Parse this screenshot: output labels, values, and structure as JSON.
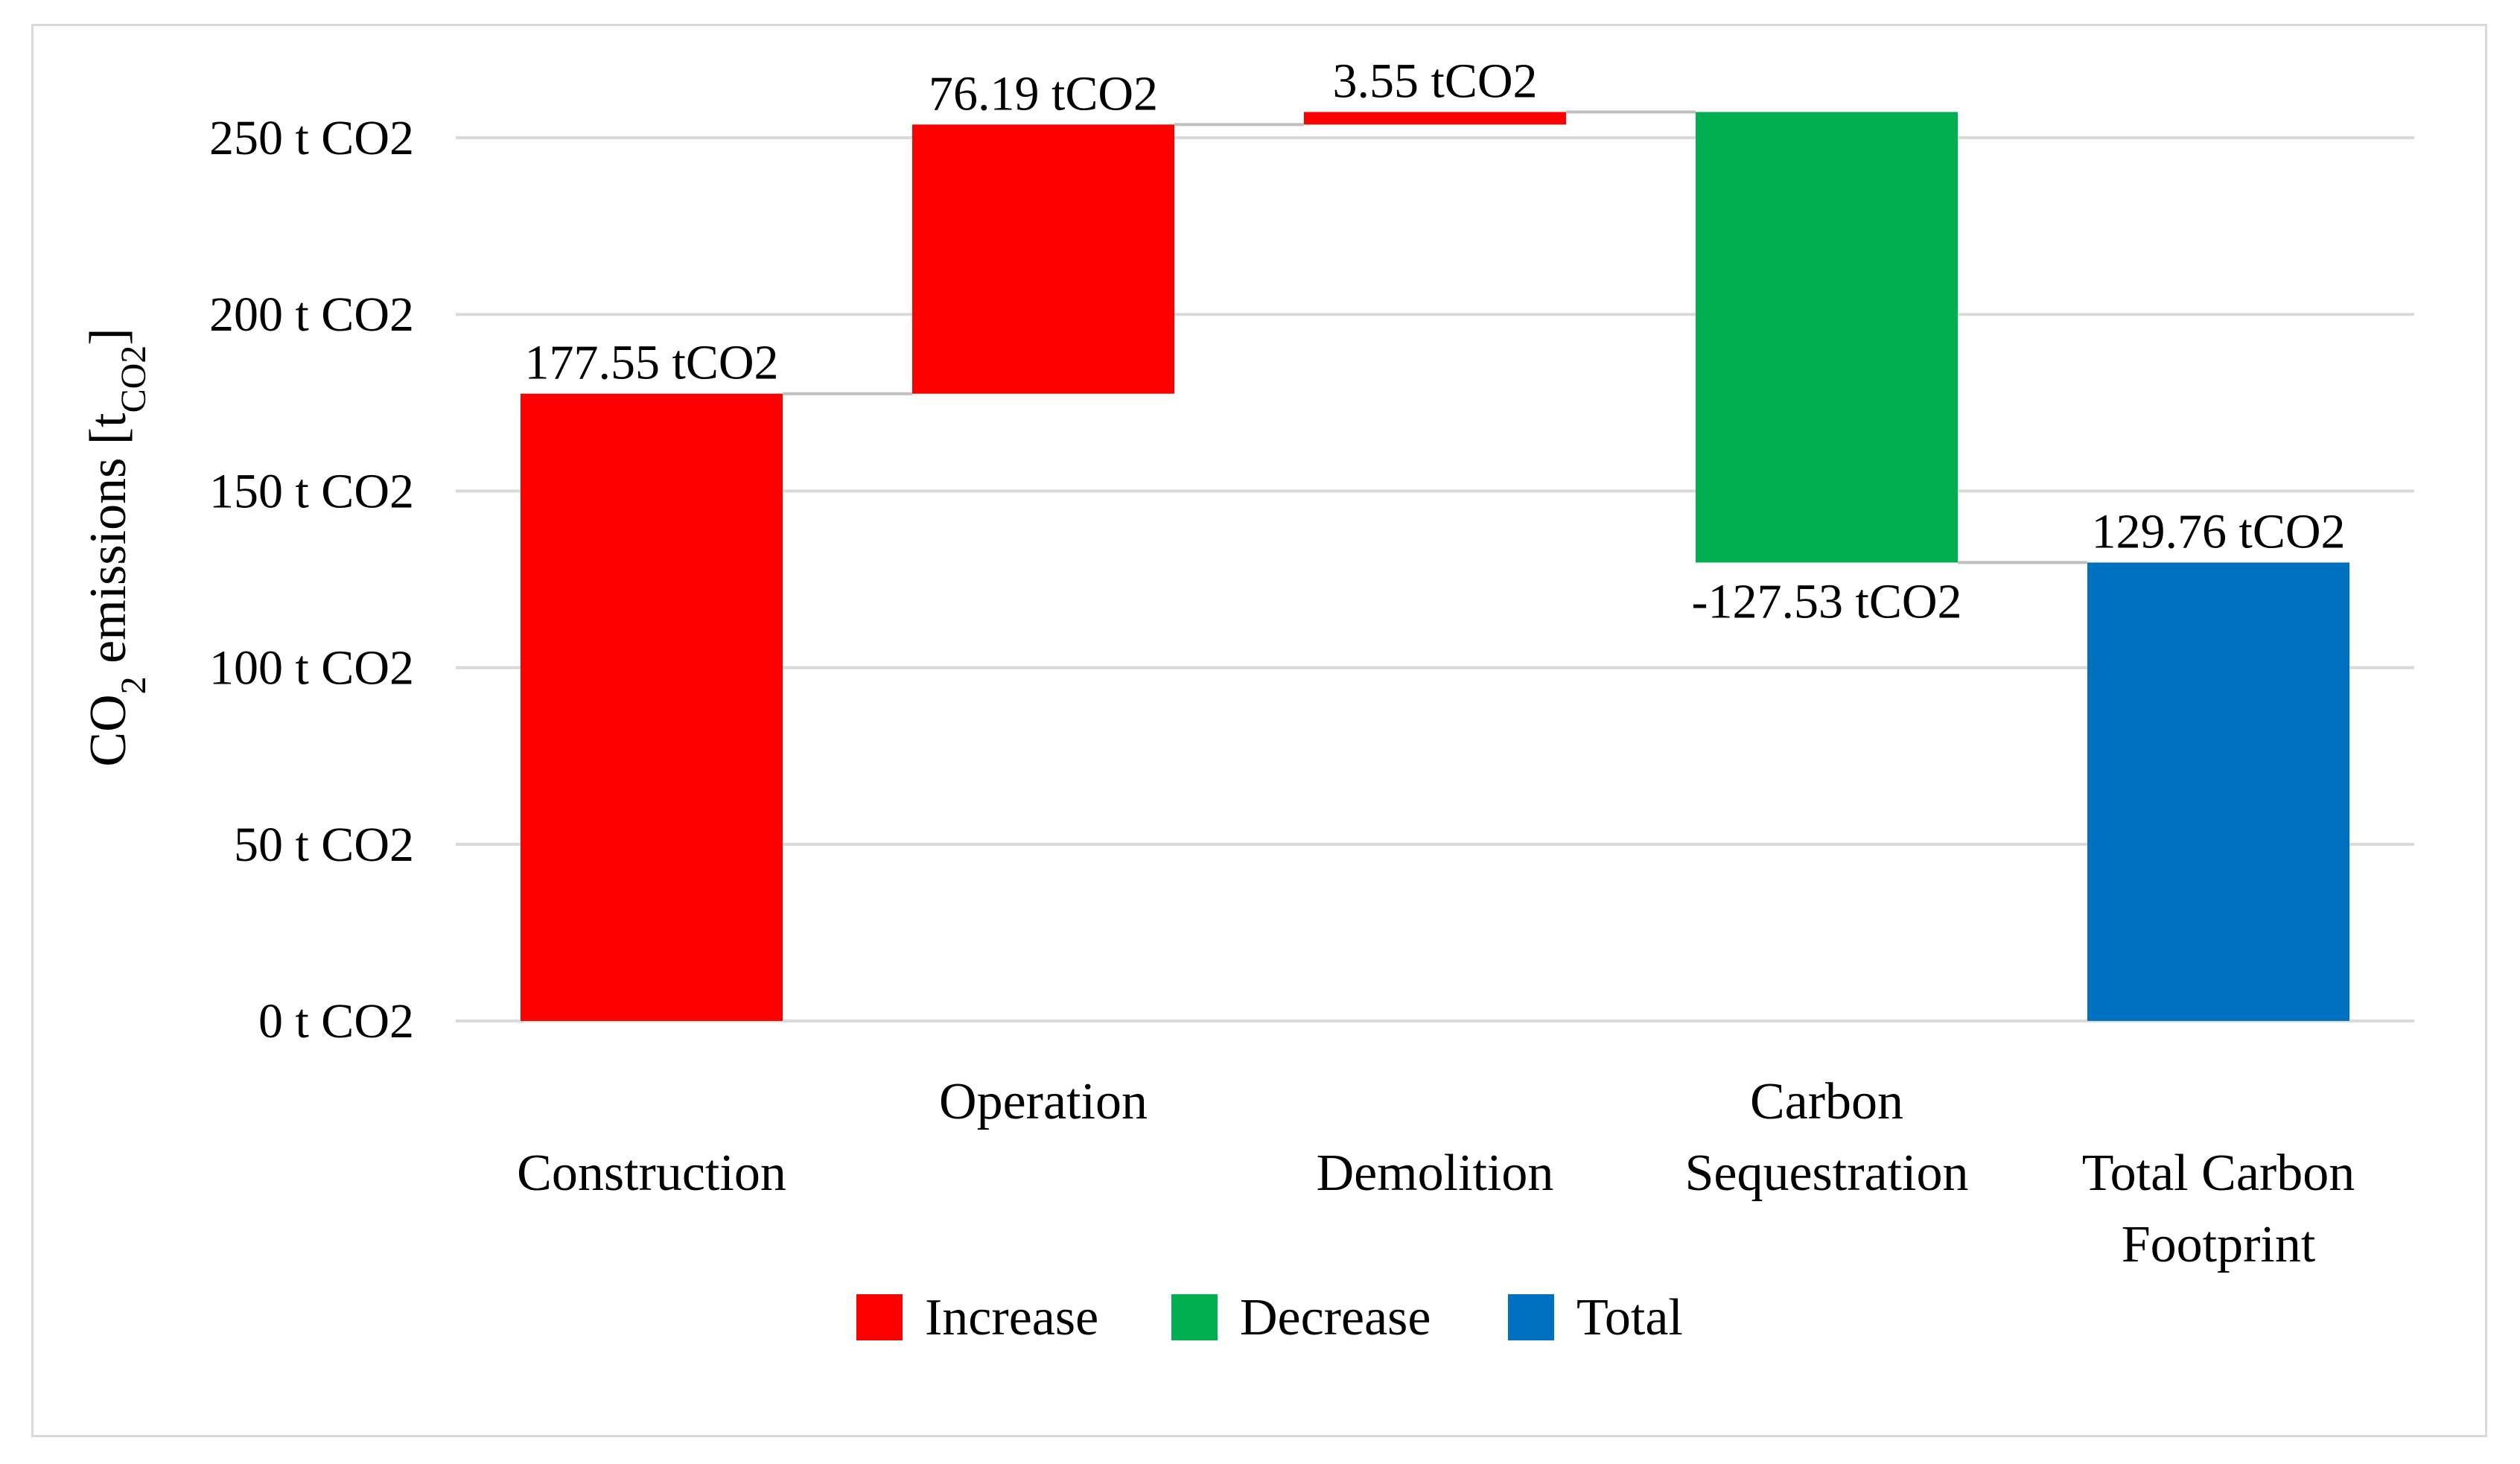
{
  "chart_data": {
    "type": "waterfall",
    "title": "",
    "xlabel": "",
    "ylabel": {
      "base": "CO",
      "sub": "2",
      "text": " emissions [t",
      "unit_sub": "CO2",
      "end": "]"
    },
    "ylim": [
      0,
      250
    ],
    "yticks": [
      0,
      50,
      100,
      150,
      200,
      250
    ],
    "ytick_labels": [
      "0 t CO2",
      "50 t CO2",
      "100 t CO2",
      "150 t CO2",
      "200 t CO2",
      "250 t CO2"
    ],
    "grid": true,
    "legend_position": "bottom",
    "categories": [
      {
        "lines": [
          "Construction"
        ],
        "value": 177.55,
        "kind": "increase",
        "label": "177.55 tCO2"
      },
      {
        "lines": [
          "Operation"
        ],
        "value": 76.19,
        "kind": "increase",
        "label": "76.19 tCO2"
      },
      {
        "lines": [
          "Demolition"
        ],
        "value": 3.55,
        "kind": "increase",
        "label": "3.55 tCO2"
      },
      {
        "lines": [
          "Carbon",
          "Sequestration"
        ],
        "value": -127.53,
        "kind": "decrease",
        "label": "-127.53 tCO2"
      },
      {
        "lines": [
          "Total Carbon",
          "Footprint"
        ],
        "value": 129.76,
        "kind": "total",
        "label": "129.76 tCO2"
      }
    ],
    "legend": [
      {
        "kind": "increase",
        "label": "Increase"
      },
      {
        "kind": "decrease",
        "label": "Decrease"
      },
      {
        "kind": "total",
        "label": "Total"
      }
    ],
    "colors": {
      "increase": "#ff0000",
      "decrease": "#00b050",
      "total": "#0070c0",
      "grid": "#d9d9d9",
      "connector": "#bfbfbf"
    }
  }
}
